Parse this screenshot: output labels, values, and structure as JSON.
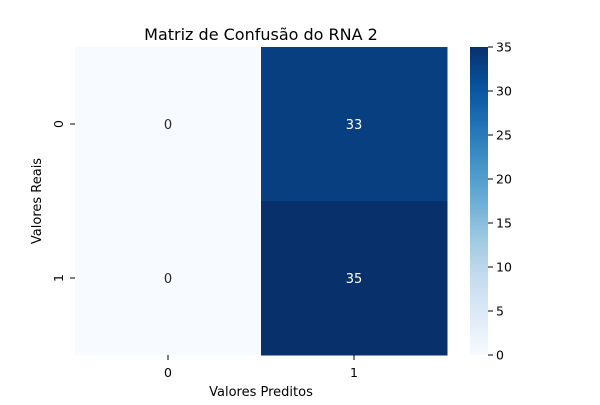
{
  "chart_data": {
    "type": "heatmap",
    "title": "Matriz de Confusão do RNA 2",
    "xlabel": "Valores Preditos",
    "ylabel": "Valores Reais",
    "x_categories": [
      "0",
      "1"
    ],
    "y_categories": [
      "0",
      "1"
    ],
    "values": [
      [
        0,
        33
      ],
      [
        0,
        35
      ]
    ],
    "colormap": "Blues",
    "colorbar": {
      "range": [
        0,
        35
      ],
      "ticks": [
        0,
        5,
        10,
        15,
        20,
        25,
        30,
        35
      ]
    },
    "annotations": true,
    "grid": false
  }
}
